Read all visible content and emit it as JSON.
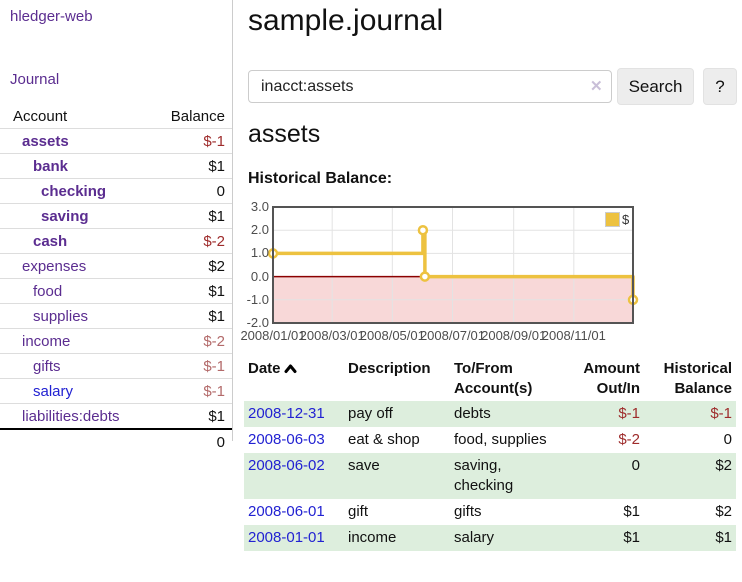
{
  "app": {
    "title": "hledger-web"
  },
  "sidebar": {
    "journal_link": "Journal",
    "accounts_table": {
      "account_header": "Account",
      "balance_header": "Balance",
      "rows": [
        {
          "name": "assets",
          "balance": "$-1",
          "depth": 1,
          "bold": true,
          "name_color": "purple",
          "balance_color": "neg"
        },
        {
          "name": "bank",
          "balance": "$1",
          "depth": 2,
          "bold": true,
          "name_color": "purple",
          "balance_color": "normal"
        },
        {
          "name": "checking",
          "balance": "0",
          "depth": 3,
          "bold": true,
          "name_color": "purple",
          "balance_color": "normal"
        },
        {
          "name": "saving",
          "balance": "$1",
          "depth": 3,
          "bold": true,
          "name_color": "purple",
          "balance_color": "normal"
        },
        {
          "name": "cash",
          "balance": "$-2",
          "depth": 2,
          "bold": true,
          "name_color": "purple",
          "balance_color": "neg"
        },
        {
          "name": "expenses",
          "balance": "$2",
          "depth": 1,
          "bold": false,
          "name_color": "purple",
          "balance_color": "normal"
        },
        {
          "name": "food",
          "balance": "$1",
          "depth": 2,
          "bold": false,
          "name_color": "purple",
          "balance_color": "normal"
        },
        {
          "name": "supplies",
          "balance": "$1",
          "depth": 2,
          "bold": false,
          "name_color": "purple",
          "balance_color": "normal"
        },
        {
          "name": "income",
          "balance": "$-2",
          "depth": 1,
          "bold": false,
          "name_color": "purple",
          "balance_color": "dimneg"
        },
        {
          "name": "gifts",
          "balance": "$-1",
          "depth": 2,
          "bold": false,
          "name_color": "purple",
          "balance_color": "dimneg"
        },
        {
          "name": "salary",
          "balance": "$-1",
          "depth": 2,
          "bold": false,
          "name_color": "blue",
          "balance_color": "dimneg"
        },
        {
          "name": "liabilities:debts",
          "balance": "$1",
          "depth": 1,
          "bold": false,
          "name_color": "purple",
          "balance_color": "normal"
        }
      ],
      "total": "0"
    }
  },
  "main": {
    "title": "sample.journal",
    "search": {
      "value": "inacct:assets",
      "clear_icon": "✕",
      "search_button": "Search",
      "help_button": "?"
    },
    "account_heading": "assets",
    "chart_label": "Historical Balance:",
    "register": {
      "headers": {
        "date": "Date",
        "description": "Description",
        "accounts": "To/From Account(s)",
        "amount": "Amount Out/In",
        "balance": "Historical Balance"
      },
      "rows": [
        {
          "date": "2008-12-31",
          "description": "pay off",
          "accounts": "debts",
          "amount": "$-1",
          "balance": "$-1",
          "amount_neg": true,
          "balance_neg": true,
          "shaded": true
        },
        {
          "date": "2008-06-03",
          "description": "eat & shop",
          "accounts": "food, supplies",
          "amount": "$-2",
          "balance": "0",
          "amount_neg": true,
          "balance_neg": false,
          "shaded": false
        },
        {
          "date": "2008-06-02",
          "description": "save",
          "accounts": "saving, checking",
          "amount": "0",
          "balance": "$2",
          "amount_neg": false,
          "balance_neg": false,
          "shaded": true
        },
        {
          "date": "2008-06-01",
          "description": "gift",
          "accounts": "gifts",
          "amount": "$1",
          "balance": "$2",
          "amount_neg": false,
          "balance_neg": false,
          "shaded": false
        },
        {
          "date": "2008-01-01",
          "description": "income",
          "accounts": "salary",
          "amount": "$1",
          "balance": "$1",
          "amount_neg": false,
          "balance_neg": false,
          "shaded": true
        }
      ]
    }
  },
  "chart_data": {
    "type": "line",
    "title": "Historical Balance:",
    "step": true,
    "series": [
      {
        "name": "$",
        "color": "#edc240",
        "points": [
          [
            "2008-01-01",
            1
          ],
          [
            "2008-06-01",
            2
          ],
          [
            "2008-06-03",
            0
          ],
          [
            "2008-12-31",
            -1
          ]
        ]
      }
    ],
    "x_range": [
      "2008-01-01",
      "2008-12-31"
    ],
    "x_tick_labels": [
      "2008/01/01",
      "2008/03/01",
      "2008/05/01",
      "2008/07/01",
      "2008/09/01",
      "2008/11/01"
    ],
    "y_ticks": [
      3.0,
      2.0,
      1.0,
      0.0,
      -1.0,
      -2.0
    ],
    "ylim": [
      -2,
      3
    ],
    "grid": true,
    "legend": {
      "label": "$",
      "position": "top-right"
    },
    "negative_region_color": "#f8d8d8",
    "zero_line_color": "#8b0000"
  },
  "colors": {
    "accent_gold": "#edc240",
    "link_purple": "#5b2d90",
    "link_blue": "#2222d2",
    "negative_strong": "#9e2b2b",
    "negative_dim": "#b36a6a",
    "row_green": "#ddeedd",
    "negative_region": "#f8d8d8",
    "zero_line": "#8b0000",
    "chart_border": "#545454"
  }
}
